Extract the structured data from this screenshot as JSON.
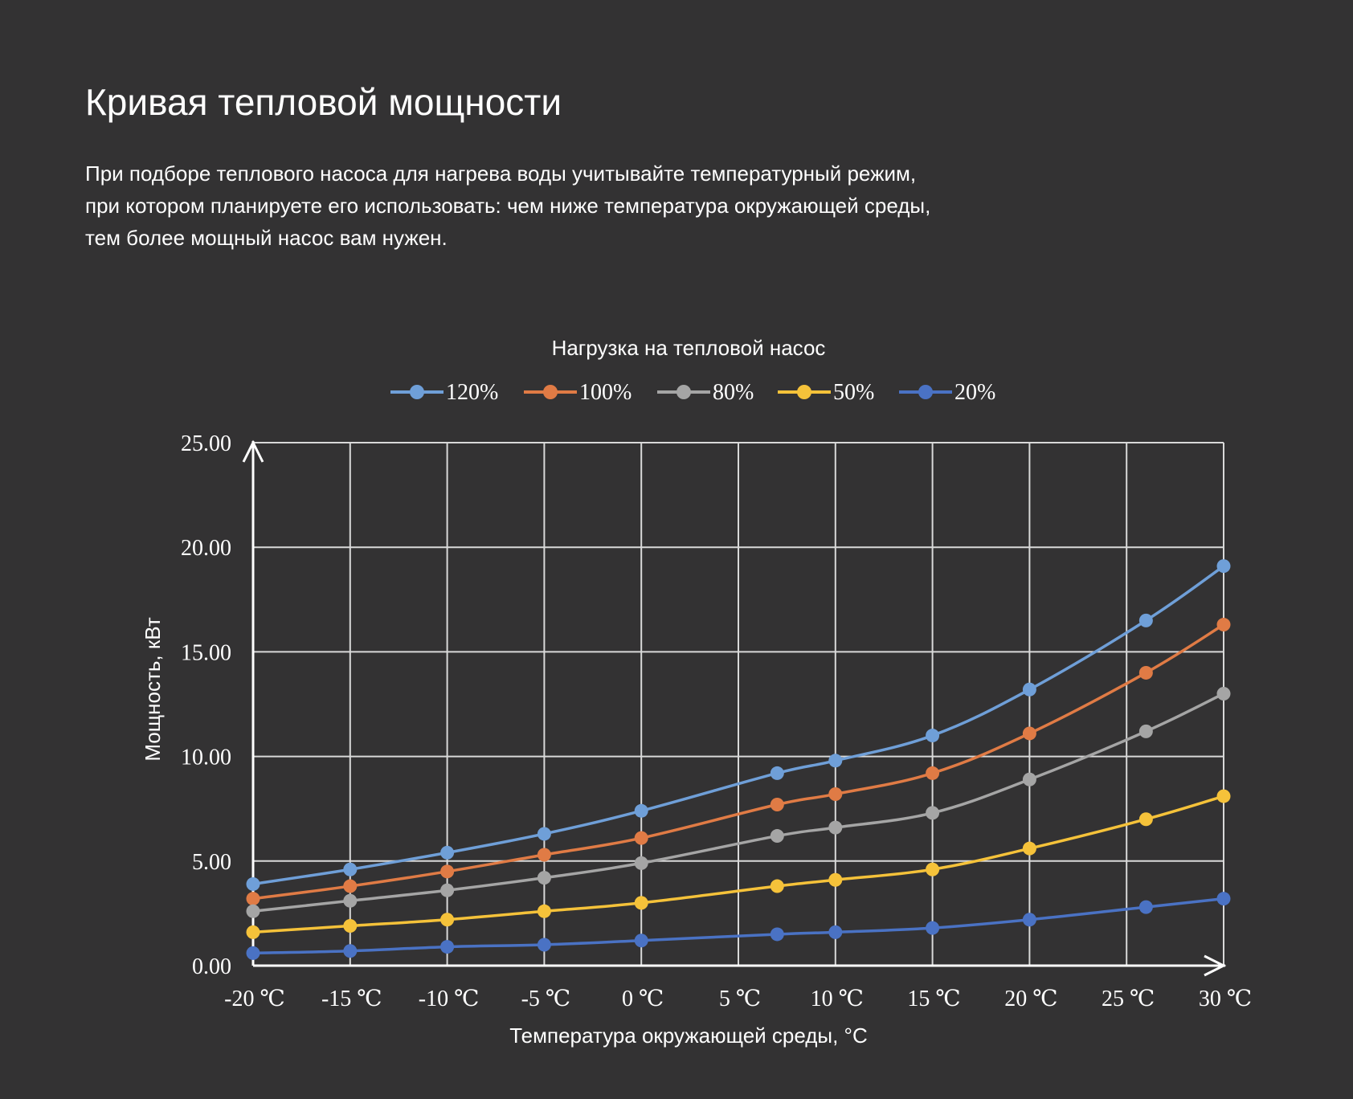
{
  "page": {
    "title": "Кривая тепловой мощности",
    "intro_lines": [
      "При подборе теплового насоса для нагрева воды учитывайте температурный режим,",
      "при котором планируете его использовать: чем ниже температура окружающей среды,",
      "тем более мощный насос вам нужен."
    ]
  },
  "chart_data": {
    "type": "line",
    "title": "Нагрузка на тепловой насос",
    "xlabel": "Температура окружающей среды, °С",
    "ylabel": "Мощность, кВт",
    "x_tick_labels": [
      "-20 ℃",
      "-15 ℃",
      "-10 ℃",
      "-5 ℃",
      "0 ℃",
      "5 ℃",
      "10 ℃",
      "15 ℃",
      "20 ℃",
      "25 ℃",
      "30 ℃"
    ],
    "x_ticks": [
      -20,
      -15,
      -10,
      -5,
      0,
      5,
      10,
      15,
      20,
      25,
      30
    ],
    "y_tick_labels": [
      "0.00",
      "5.00",
      "10.00",
      "15.00",
      "20.00",
      "25.00"
    ],
    "y_ticks": [
      0,
      5,
      10,
      15,
      20,
      25
    ],
    "xlim": [
      -20,
      30
    ],
    "ylim": [
      0,
      25
    ],
    "grid": true,
    "legend": "top-center",
    "x": [
      -20,
      -15,
      -10,
      -5,
      0,
      7,
      10,
      15,
      20,
      26,
      30
    ],
    "series": [
      {
        "name": "120%",
        "color": "#6f9fd8",
        "values": [
          3.9,
          4.6,
          5.4,
          6.3,
          7.4,
          9.2,
          9.8,
          11.0,
          13.2,
          16.5,
          19.1
        ]
      },
      {
        "name": "100%",
        "color": "#e07b45",
        "values": [
          3.2,
          3.8,
          4.5,
          5.3,
          6.1,
          7.7,
          8.2,
          9.2,
          11.1,
          14.0,
          16.3
        ]
      },
      {
        "name": "80%",
        "color": "#a5a5a5",
        "values": [
          2.6,
          3.1,
          3.6,
          4.2,
          4.9,
          6.2,
          6.6,
          7.3,
          8.9,
          11.2,
          13.0
        ]
      },
      {
        "name": "50%",
        "color": "#f5c23a",
        "values": [
          1.6,
          1.9,
          2.2,
          2.6,
          3.0,
          3.8,
          4.1,
          4.6,
          5.6,
          7.0,
          8.1
        ]
      },
      {
        "name": "20%",
        "color": "#4a72c4",
        "values": [
          0.6,
          0.7,
          0.9,
          1.0,
          1.2,
          1.5,
          1.6,
          1.8,
          2.2,
          2.8,
          3.2
        ]
      }
    ]
  }
}
